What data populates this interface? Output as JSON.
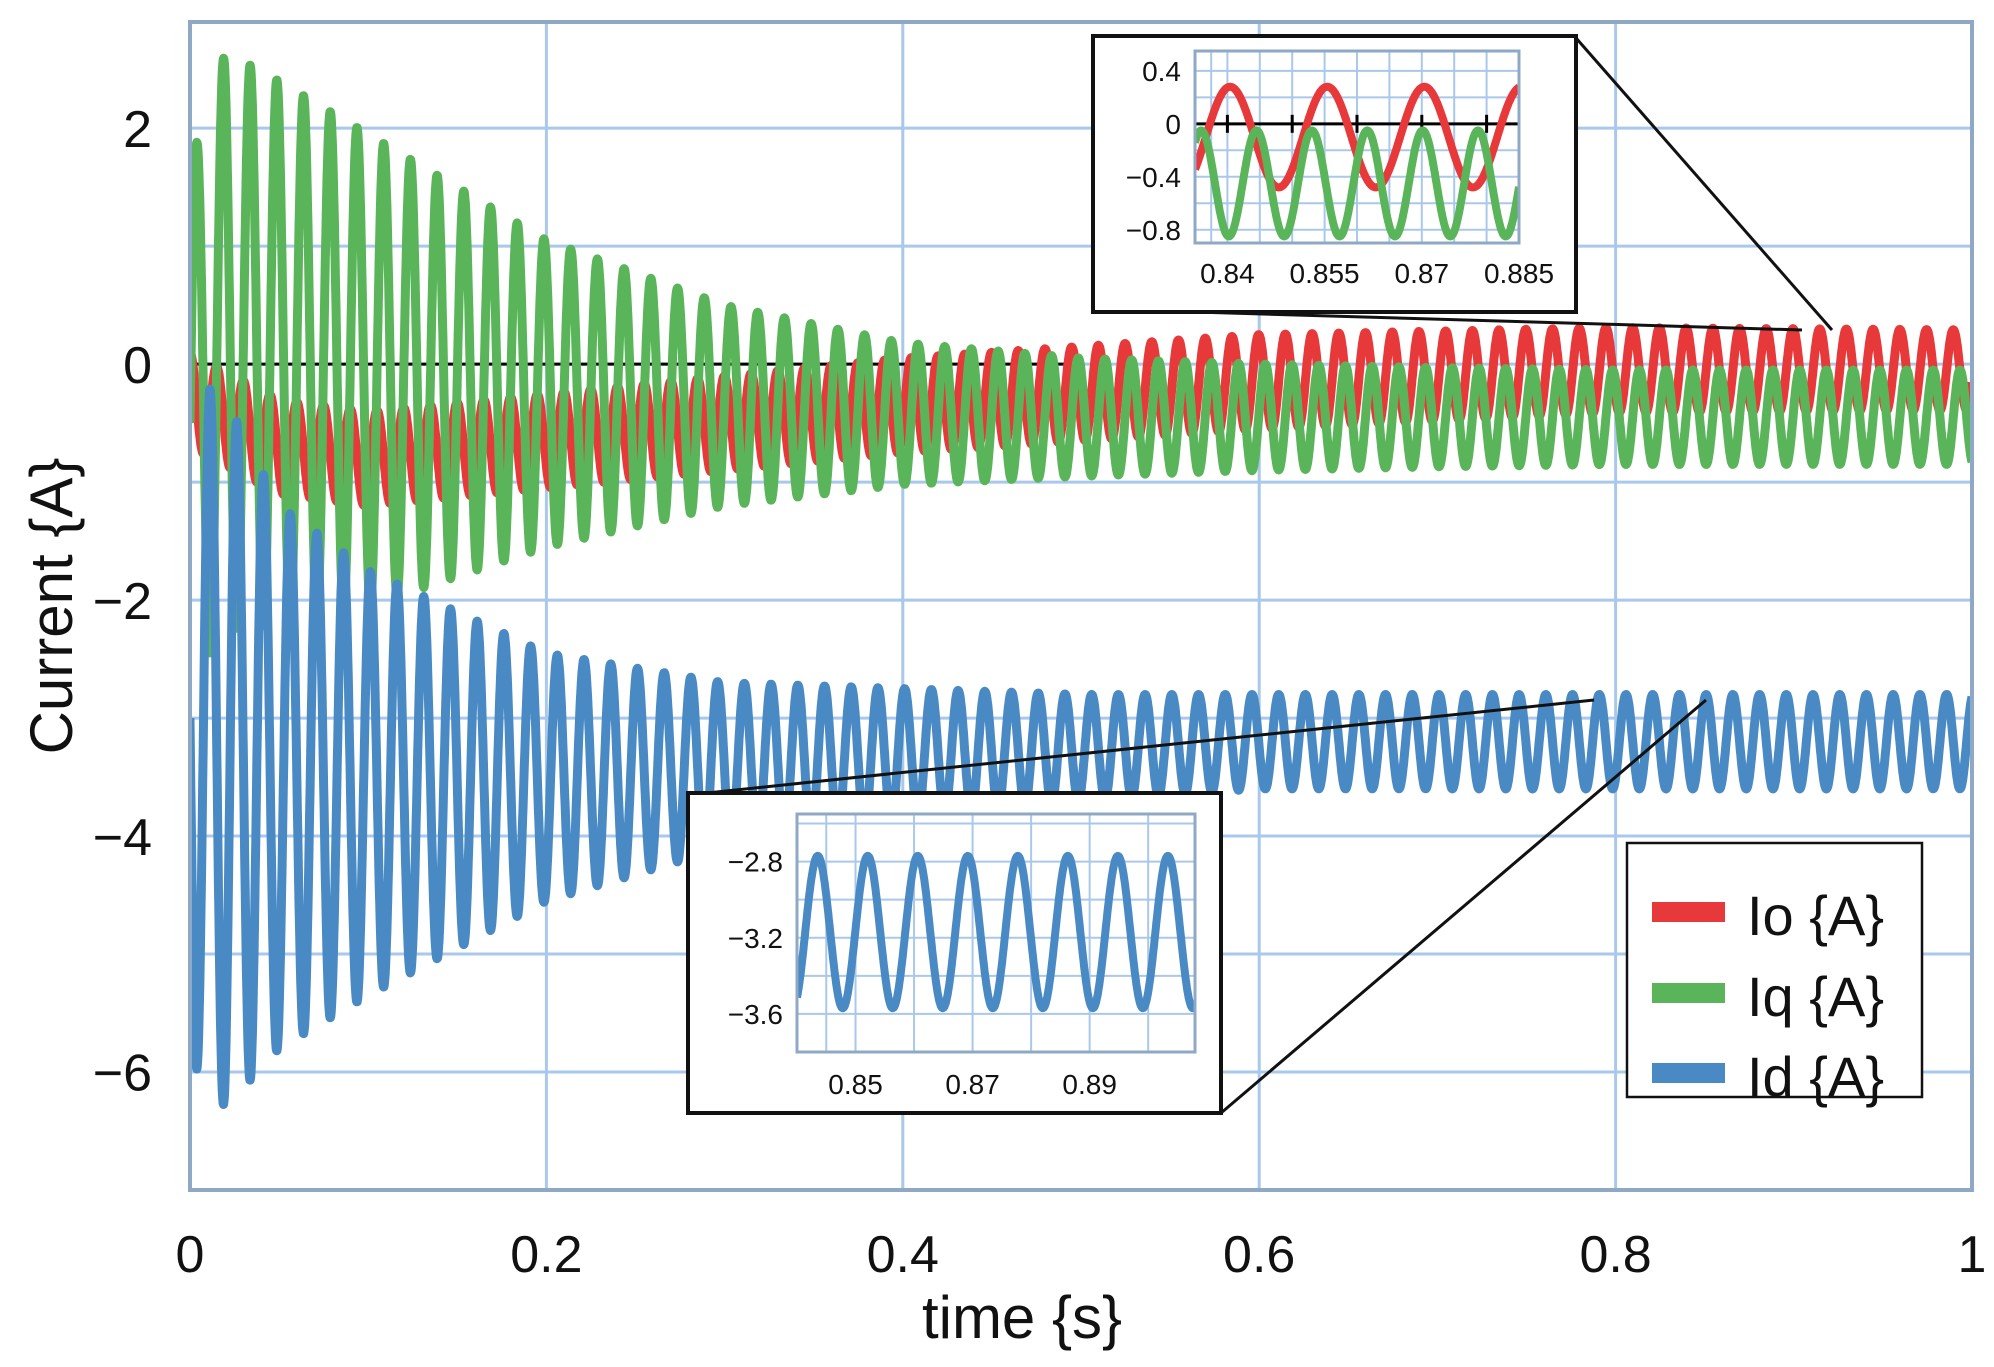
{
  "chart_data": [
    {
      "name": "main",
      "type": "line",
      "title": "",
      "xlabel": "time {s}",
      "ylabel": "Current {A}",
      "xlim": [
        0,
        1
      ],
      "ylim": [
        -7,
        2.9
      ],
      "x_ticks": [
        0,
        0.2,
        0.4,
        0.6,
        0.8,
        1
      ],
      "x_tick_labels": [
        "0",
        "0.2",
        "0.4",
        "0.6",
        "0.8",
        "1"
      ],
      "y_ticks": [
        2,
        0,
        -2,
        -4,
        -6
      ],
      "y_tick_labels": [
        "2",
        "0",
        "−2",
        "−4",
        "−6"
      ],
      "grid": true,
      "reference_line": {
        "y": 0,
        "x_range": [
          0,
          0.5
        ],
        "color": "#000000"
      },
      "legend_position": "bottom-right",
      "oscillation_frequency_hz": 66.7,
      "series": [
        {
          "name": "Io {A}",
          "color": "#e8393a",
          "x": [
            0,
            0.05,
            0.1,
            0.2,
            0.3,
            0.4,
            0.5,
            0.6,
            0.7,
            0.8,
            0.9,
            1.0
          ],
          "mean": [
            -0.3,
            -0.7,
            -0.8,
            -0.65,
            -0.5,
            -0.35,
            -0.25,
            -0.15,
            -0.1,
            -0.05,
            -0.05,
            -0.05
          ],
          "amplitude": [
            0.4,
            0.4,
            0.4,
            0.4,
            0.4,
            0.4,
            0.4,
            0.4,
            0.38,
            0.36,
            0.35,
            0.34
          ]
        },
        {
          "name": "Iq {A}",
          "color": "#5ab55a",
          "x": [
            0,
            0.02,
            0.05,
            0.1,
            0.2,
            0.3,
            0.4,
            0.5,
            0.6,
            0.7,
            0.8,
            0.9,
            1.0
          ],
          "mean": [
            -0.5,
            0.2,
            0.1,
            -0.05,
            -0.25,
            -0.35,
            -0.42,
            -0.45,
            -0.45,
            -0.45,
            -0.45,
            -0.45,
            -0.45
          ],
          "amplitude": [
            2.2,
            2.45,
            2.3,
            2.0,
            1.3,
            0.85,
            0.6,
            0.5,
            0.45,
            0.42,
            0.4,
            0.4,
            0.4
          ]
        },
        {
          "name": "Id {A}",
          "color": "#4a8ac4",
          "x": [
            0,
            0.02,
            0.05,
            0.1,
            0.2,
            0.3,
            0.4,
            0.5,
            0.6,
            0.7,
            0.8,
            0.9,
            1.0
          ],
          "mean": [
            -3.0,
            -3.3,
            -3.5,
            -3.55,
            -3.5,
            -3.4,
            -3.3,
            -3.25,
            -3.2,
            -3.2,
            -3.2,
            -3.2,
            -3.2
          ],
          "amplitude": [
            2.9,
            3.0,
            2.3,
            1.8,
            1.05,
            0.7,
            0.55,
            0.45,
            0.4,
            0.4,
            0.4,
            0.4,
            0.4
          ]
        }
      ]
    },
    {
      "name": "inset-top",
      "type": "line",
      "xlim": [
        0.835,
        0.885
      ],
      "ylim": [
        -0.9,
        0.55
      ],
      "x_ticks": [
        0.84,
        0.855,
        0.87,
        0.885
      ],
      "x_tick_labels": [
        "0.84",
        "0.855",
        "0.87",
        "0.885"
      ],
      "y_ticks": [
        0.4,
        0,
        -0.4,
        -0.8
      ],
      "y_tick_labels": [
        "0.4",
        "0",
        "−0.4",
        "−0.8"
      ],
      "grid": true,
      "reference_line": {
        "y": 0
      },
      "series": [
        {
          "name": "Io {A}",
          "color": "#e8393a",
          "mean": -0.1,
          "amplitude": 0.38,
          "frequency_hz": 66.7,
          "phase_deg": 70
        },
        {
          "name": "Iq {A}",
          "color": "#5ab55a",
          "mean": -0.45,
          "amplitude": 0.4,
          "frequency_hz": 117,
          "phase_deg": 160
        }
      ]
    },
    {
      "name": "inset-bottom",
      "type": "line",
      "xlim": [
        0.84,
        0.908
      ],
      "ylim": [
        -3.8,
        -2.55
      ],
      "x_ticks": [
        0.85,
        0.87,
        0.89
      ],
      "x_tick_labels": [
        "0.85",
        "0.87",
        "0.89"
      ],
      "y_ticks": [
        -2.8,
        -3.2,
        -3.6
      ],
      "y_tick_labels": [
        "−2.8",
        "−3.2",
        "−3.6"
      ],
      "grid": true,
      "series": [
        {
          "name": "Id {A}",
          "color": "#4a8ac4",
          "mean": -3.17,
          "amplitude": 0.4,
          "frequency_hz": 117,
          "phase_deg": 200
        }
      ]
    }
  ],
  "legend": {
    "entries": [
      {
        "label": "Io {A}",
        "color": "#e8393a"
      },
      {
        "label": "Iq {A}",
        "color": "#5ab55a"
      },
      {
        "label": "Id {A}",
        "color": "#4a8ac4"
      }
    ]
  }
}
